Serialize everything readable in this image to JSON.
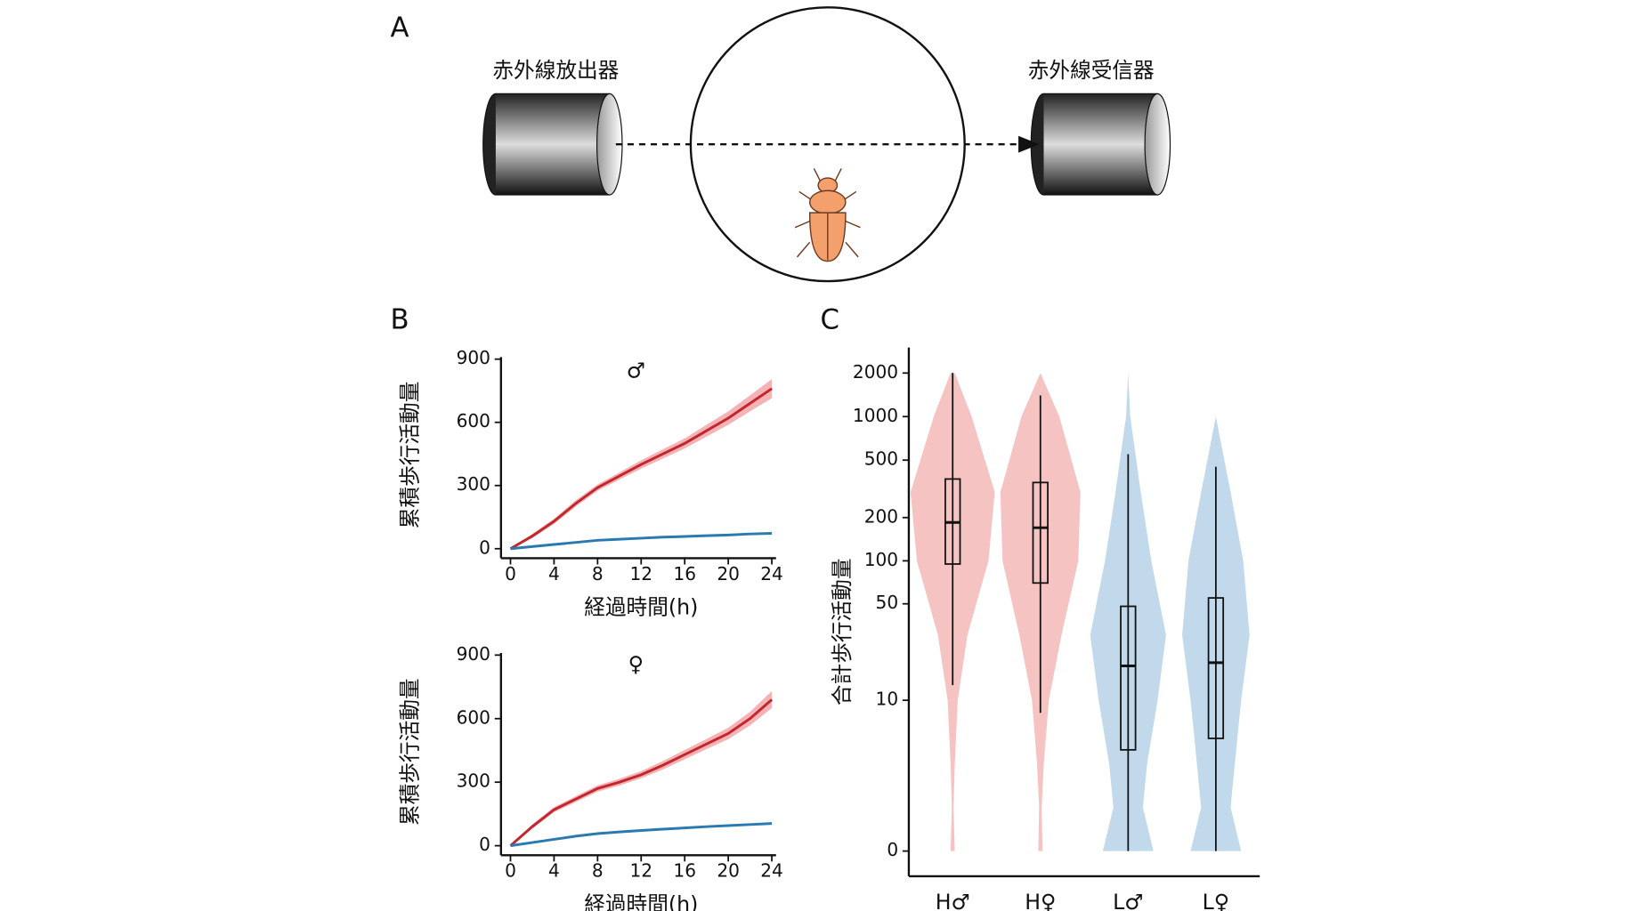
{
  "diagram": {
    "panel_label": "A",
    "emitter": "赤外線放出器",
    "receiver": "赤外線受信器"
  },
  "chart_data": [
    {
      "type": "line",
      "panel_label": "B",
      "annotation": "♂",
      "y_label": "累積歩行活動量",
      "x_label": "経過時間(h)",
      "x": [
        0,
        2,
        4,
        6,
        8,
        10,
        12,
        14,
        16,
        18,
        20,
        22,
        24
      ],
      "xlim": [
        0,
        24
      ],
      "xticks": [
        0,
        4,
        8,
        12,
        16,
        20,
        24
      ],
      "ylim": [
        0,
        900
      ],
      "yticks": [
        0,
        300,
        600,
        900
      ],
      "series": [
        {
          "color": "#c1272d",
          "band_color": "#f2a0a4",
          "values": [
            0,
            60,
            130,
            215,
            290,
            345,
            400,
            450,
            500,
            560,
            620,
            690,
            760
          ],
          "band_lower": [
            0,
            50,
            118,
            200,
            275,
            328,
            380,
            428,
            476,
            532,
            588,
            652,
            715
          ],
          "band_upper": [
            0,
            70,
            142,
            230,
            305,
            362,
            420,
            472,
            524,
            588,
            652,
            728,
            805
          ]
        },
        {
          "color": "#2a7ab0",
          "values": [
            0,
            10,
            20,
            30,
            40,
            45,
            50,
            55,
            58,
            62,
            65,
            70,
            73
          ]
        }
      ]
    },
    {
      "type": "line",
      "annotation": "♀",
      "y_label": "累積歩行活動量",
      "x_label": "経過時間(h)",
      "x": [
        0,
        2,
        4,
        6,
        8,
        10,
        12,
        14,
        16,
        18,
        20,
        22,
        24
      ],
      "xlim": [
        0,
        24
      ],
      "xticks": [
        0,
        4,
        8,
        12,
        16,
        20,
        24
      ],
      "ylim": [
        0,
        900
      ],
      "yticks": [
        0,
        300,
        600,
        900
      ],
      "series": [
        {
          "color": "#c1272d",
          "band_color": "#f2a0a4",
          "values": [
            0,
            90,
            170,
            220,
            270,
            300,
            335,
            380,
            430,
            480,
            530,
            600,
            690
          ],
          "band_lower": [
            0,
            80,
            158,
            206,
            255,
            284,
            318,
            360,
            408,
            456,
            503,
            568,
            650
          ],
          "band_upper": [
            0,
            100,
            182,
            234,
            285,
            316,
            352,
            400,
            452,
            504,
            557,
            632,
            730
          ]
        },
        {
          "color": "#2a7ab0",
          "values": [
            0,
            15,
            30,
            45,
            57,
            65,
            72,
            78,
            84,
            90,
            95,
            100,
            105
          ]
        }
      ]
    },
    {
      "type": "violin",
      "panel_label": "C",
      "y_label": "合計歩行活動量",
      "scale": "log1p",
      "ylim": [
        -0.33,
        3000
      ],
      "yticks": [
        0,
        10,
        50,
        100,
        200,
        500,
        1000,
        2000
      ],
      "categories": [
        "H♂",
        "H♀",
        "L♂",
        "L♀"
      ],
      "density_levels": [
        0,
        1,
        3,
        10,
        30,
        100,
        300,
        1000,
        2000
      ],
      "series": [
        {
          "color": "#f4b8b8",
          "density": [
            0.05,
            0.02,
            0.05,
            0.12,
            0.35,
            0.85,
            1.0,
            0.45,
            0.05
          ],
          "whisker_low": 13,
          "q1": 95,
          "median": 185,
          "q3": 370,
          "whisker_high": 2000
        },
        {
          "color": "#f4b8b8",
          "density": [
            0.05,
            0.03,
            0.08,
            0.2,
            0.5,
            0.9,
            0.95,
            0.45,
            0
          ],
          "whisker_low": 8,
          "q1": 70,
          "median": 170,
          "q3": 350,
          "whisker_high": 1400
        },
        {
          "color": "#b6d2e8",
          "density": [
            0.6,
            0.35,
            0.45,
            0.7,
            0.9,
            0.55,
            0.3,
            0.05,
            0
          ],
          "whisker_low": 0,
          "q1": 4,
          "median": 18,
          "q3": 48,
          "whisker_high": 550
        },
        {
          "color": "#b6d2e8",
          "density": [
            0.6,
            0.35,
            0.45,
            0.6,
            0.8,
            0.65,
            0.35,
            0,
            0
          ],
          "whisker_low": 0,
          "q1": 5,
          "median": 19,
          "q3": 55,
          "whisker_high": 450
        }
      ]
    }
  ]
}
